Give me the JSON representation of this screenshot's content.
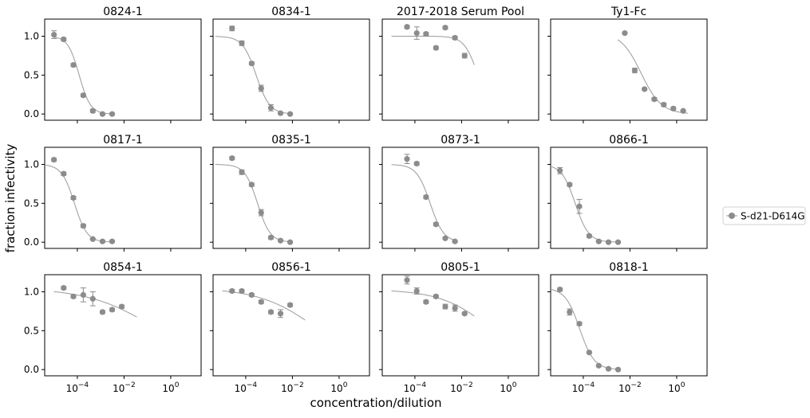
{
  "figure": {
    "xlabel": "concentration/dilution",
    "ylabel": "fraction infectivity",
    "legend_label": "S-d21-D614G",
    "color": "#8c8c8c"
  },
  "chart_data": {
    "type": "scatter",
    "x_scale": "log10",
    "xlim": [
      4e-06,
      20
    ],
    "ylim": [
      -0.08,
      1.22
    ],
    "x_ticks": [
      {
        "value": 0.0001,
        "label": "10^-4"
      },
      {
        "value": 0.01,
        "label": "10^-2"
      },
      {
        "value": 1,
        "label": "10^0"
      }
    ],
    "y_ticks": [
      {
        "value": 0.0,
        "label": "0.0"
      },
      {
        "value": 0.5,
        "label": "0.5"
      },
      {
        "value": 1.0,
        "label": "1.0"
      }
    ],
    "legend": {
      "position": "right",
      "entries": [
        "S-d21-D614G"
      ]
    },
    "panels": [
      {
        "title": "0824-1",
        "points": [
          [
            1e-05,
            1.02
          ],
          [
            2.6e-05,
            0.96
          ],
          [
            6.8e-05,
            0.63
          ],
          [
            0.00018,
            0.24
          ],
          [
            0.00046,
            0.04
          ],
          [
            0.0012,
            0.0
          ],
          [
            0.0031,
            0.0
          ]
        ],
        "errors": [
          0.05,
          0.02,
          0.02,
          0.02,
          0.02,
          0.01,
          0.01
        ],
        "curve": {
          "ic50": 0.00012,
          "hill": 1.8,
          "top": 1.0,
          "bottom": 0.0,
          "xmin": 1e-05,
          "xmax": 0.0031
        }
      },
      {
        "title": "0834-1",
        "points": [
          [
            2.6e-05,
            1.1
          ],
          [
            6.8e-05,
            0.91
          ],
          [
            0.00018,
            0.65
          ],
          [
            0.00046,
            0.33
          ],
          [
            0.0012,
            0.08
          ],
          [
            0.0031,
            0.01
          ],
          [
            0.008,
            0.0
          ]
        ],
        "errors": [
          0.03,
          0.03,
          0.02,
          0.04,
          0.04,
          0.01,
          0.01
        ],
        "curve": {
          "ic50": 0.00028,
          "hill": 1.5,
          "top": 1.0,
          "bottom": 0.0,
          "xmin": 5e-06,
          "xmax": 0.008
        }
      },
      {
        "title": "2017-2018 Serum Pool",
        "points": [
          [
            4.6e-05,
            1.12
          ],
          [
            0.00012,
            1.04
          ],
          [
            0.0003,
            1.03
          ],
          [
            0.0008,
            0.85
          ],
          [
            0.002,
            1.11
          ],
          [
            0.0052,
            0.98
          ],
          [
            0.0135,
            0.75
          ]
        ],
        "errors": [
          0.02,
          0.08,
          0.02,
          0.02,
          0.02,
          0.02,
          0.03
        ],
        "curve": {
          "ic50": 0.05,
          "hill": 1.5,
          "top": 1.0,
          "bottom": 0.0,
          "xmin": 1e-05,
          "xmax": 0.035
        }
      },
      {
        "title": "Ty1-Fc",
        "points": [
          [
            0.006,
            1.04
          ],
          [
            0.016,
            0.56
          ],
          [
            0.042,
            0.32
          ],
          [
            0.11,
            0.19
          ],
          [
            0.28,
            0.12
          ],
          [
            0.72,
            0.07
          ],
          [
            1.9,
            0.04
          ]
        ],
        "errors": [
          0.01,
          0.03,
          0.01,
          0.02,
          0.02,
          0.02,
          0.01
        ],
        "curve": {
          "ic50": 0.03,
          "hill": 1.0,
          "top": 1.05,
          "bottom": 0.0,
          "xmin": 0.003,
          "xmax": 3.0
        }
      },
      {
        "title": "0817-1",
        "points": [
          [
            1e-05,
            1.06
          ],
          [
            2.6e-05,
            0.88
          ],
          [
            6.8e-05,
            0.57
          ],
          [
            0.00018,
            0.21
          ],
          [
            0.00046,
            0.04
          ],
          [
            0.0012,
            0.01
          ],
          [
            0.0031,
            0.01
          ]
        ],
        "errors": [
          0.02,
          0.02,
          0.02,
          0.02,
          0.01,
          0.01,
          0.01
        ],
        "curve": {
          "ic50": 7.5e-05,
          "hill": 1.6,
          "top": 1.0,
          "bottom": 0.0,
          "xmin": 4e-06,
          "xmax": 0.0031
        }
      },
      {
        "title": "0835-1",
        "points": [
          [
            2.6e-05,
            1.08
          ],
          [
            6.8e-05,
            0.9
          ],
          [
            0.00018,
            0.74
          ],
          [
            0.00046,
            0.38
          ],
          [
            0.0012,
            0.06
          ],
          [
            0.0031,
            0.02
          ],
          [
            0.008,
            0.0
          ]
        ],
        "errors": [
          0.02,
          0.03,
          0.02,
          0.04,
          0.02,
          0.01,
          0.01
        ],
        "curve": {
          "ic50": 0.00032,
          "hill": 1.6,
          "top": 1.0,
          "bottom": 0.0,
          "xmin": 5e-06,
          "xmax": 0.008
        }
      },
      {
        "title": "0873-1",
        "points": [
          [
            4.6e-05,
            1.07
          ],
          [
            0.00012,
            1.01
          ],
          [
            0.0003,
            0.58
          ],
          [
            0.0008,
            0.23
          ],
          [
            0.002,
            0.05
          ],
          [
            0.0052,
            0.01
          ]
        ],
        "errors": [
          0.06,
          0.02,
          0.02,
          0.02,
          0.01,
          0.01
        ],
        "curve": {
          "ic50": 0.00045,
          "hill": 1.5,
          "top": 1.0,
          "bottom": 0.0,
          "xmin": 1e-05,
          "xmax": 0.0052
        }
      },
      {
        "title": "0866-1",
        "points": [
          [
            1e-05,
            0.92
          ],
          [
            2.6e-05,
            0.74
          ],
          [
            6.8e-05,
            0.46
          ],
          [
            0.00018,
            0.08
          ],
          [
            0.00046,
            0.01
          ],
          [
            0.0012,
            0.0
          ],
          [
            0.0031,
            0.0
          ]
        ],
        "errors": [
          0.04,
          0.02,
          0.09,
          0.02,
          0.01,
          0.01,
          0.01
        ],
        "curve": {
          "ic50": 4.5e-05,
          "hill": 1.5,
          "top": 1.0,
          "bottom": 0.0,
          "xmin": 4e-06,
          "xmax": 0.0031
        }
      },
      {
        "title": "0854-1",
        "points": [
          [
            2.6e-05,
            1.05
          ],
          [
            6.8e-05,
            0.94
          ],
          [
            0.00018,
            0.96
          ],
          [
            0.00046,
            0.91
          ],
          [
            0.0012,
            0.74
          ],
          [
            0.0031,
            0.77
          ],
          [
            0.008,
            0.81
          ]
        ],
        "errors": [
          0.02,
          0.02,
          0.09,
          0.09,
          0.02,
          0.02,
          0.02
        ],
        "curve": {
          "ic50": 0.25,
          "hill": 0.3,
          "top": 1.05,
          "bottom": 0.0,
          "xmin": 1e-05,
          "xmax": 0.035
        }
      },
      {
        "title": "0856-1",
        "points": [
          [
            2.6e-05,
            1.01
          ],
          [
            6.8e-05,
            1.01
          ],
          [
            0.00018,
            0.96
          ],
          [
            0.00046,
            0.87
          ],
          [
            0.0012,
            0.74
          ],
          [
            0.0031,
            0.72
          ],
          [
            0.008,
            0.83
          ]
        ],
        "errors": [
          0.02,
          0.02,
          0.02,
          0.02,
          0.02,
          0.05,
          0.02
        ],
        "curve": {
          "ic50": 0.12,
          "hill": 0.35,
          "top": 1.05,
          "bottom": 0.0,
          "xmin": 1e-05,
          "xmax": 0.035
        }
      },
      {
        "title": "0805-1",
        "points": [
          [
            4.6e-05,
            1.15
          ],
          [
            0.00012,
            1.01
          ],
          [
            0.0003,
            0.87
          ],
          [
            0.0008,
            0.94
          ],
          [
            0.002,
            0.81
          ],
          [
            0.0052,
            0.79
          ],
          [
            0.0135,
            0.72
          ]
        ],
        "errors": [
          0.05,
          0.04,
          0.02,
          0.02,
          0.03,
          0.04,
          0.01
        ],
        "curve": {
          "ic50": 0.2,
          "hill": 0.4,
          "top": 1.03,
          "bottom": 0.0,
          "xmin": 1e-05,
          "xmax": 0.035
        }
      },
      {
        "title": "0818-1",
        "points": [
          [
            1e-05,
            1.03
          ],
          [
            2.6e-05,
            0.74
          ],
          [
            6.8e-05,
            0.59
          ],
          [
            0.00018,
            0.22
          ],
          [
            0.00046,
            0.05
          ],
          [
            0.0012,
            0.01
          ],
          [
            0.0031,
            0.0
          ]
        ],
        "errors": [
          0.02,
          0.04,
          0.02,
          0.01,
          0.01,
          0.01,
          0.01
        ],
        "curve": {
          "ic50": 7e-05,
          "hill": 1.4,
          "top": 1.05,
          "bottom": 0.0,
          "xmin": 4e-06,
          "xmax": 0.0031
        }
      }
    ]
  }
}
